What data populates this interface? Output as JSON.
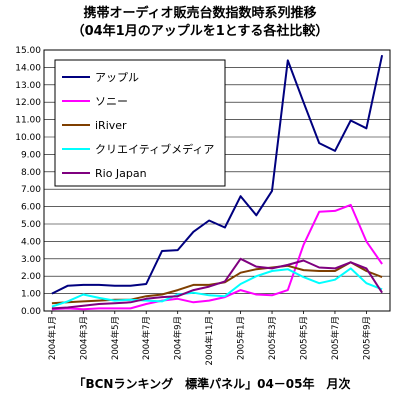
{
  "chart_data": {
    "type": "line",
    "title_lines": [
      "携帯オーディオ販売台数指数時系列推移",
      "（04年1月のアップルを1とする各社比較）"
    ],
    "caption": "「BCNランキング　標準パネル」04－05年　月次",
    "ylim": [
      0,
      15
    ],
    "y_ticks": [
      "0.00",
      "1.00",
      "2.00",
      "3.00",
      "4.00",
      "5.00",
      "6.00",
      "7.00",
      "8.00",
      "9.00",
      "10.00",
      "11.00",
      "12.00",
      "13.00",
      "14.00",
      "15.00"
    ],
    "x_tick_labels": [
      "2004年1月",
      "2004年3月",
      "2004年5月",
      "2004年7月",
      "2004年9月",
      "2004年11月",
      "2005年1月",
      "2005年3月",
      "2005年5月",
      "2005年7月",
      "2005年9月"
    ],
    "grid": true,
    "legend_position": "top-left",
    "series": [
      {
        "name": "アップル",
        "color": "#00007f",
        "values": [
          1.0,
          1.45,
          1.5,
          1.5,
          1.45,
          1.45,
          1.55,
          3.45,
          3.5,
          4.55,
          5.2,
          4.8,
          6.6,
          5.5,
          6.9,
          14.4,
          12.0,
          9.65,
          9.2,
          10.95,
          10.5,
          14.7
        ]
      },
      {
        "name": "ソニー",
        "color": "#ff00ff",
        "values": [
          0.1,
          0.15,
          0.1,
          0.15,
          0.15,
          0.15,
          0.4,
          0.6,
          0.7,
          0.5,
          0.6,
          0.8,
          1.2,
          0.95,
          0.9,
          1.2,
          3.8,
          5.7,
          5.75,
          6.1,
          4.0,
          2.7
        ]
      },
      {
        "name": "iRiver",
        "color": "#7f3f00",
        "values": [
          0.45,
          0.5,
          0.55,
          0.6,
          0.65,
          0.65,
          0.85,
          0.95,
          1.2,
          1.5,
          1.5,
          1.65,
          2.2,
          2.4,
          2.5,
          2.6,
          2.35,
          2.3,
          2.3,
          2.8,
          2.3,
          1.95
        ]
      },
      {
        "name": "クリエイティブメディア",
        "color": "#00ffff",
        "values": [
          0.25,
          0.55,
          0.95,
          0.75,
          0.6,
          0.65,
          0.6,
          0.55,
          0.95,
          1.05,
          0.9,
          0.85,
          1.55,
          2.0,
          2.3,
          2.4,
          1.95,
          1.6,
          1.8,
          2.45,
          1.6,
          1.25
        ]
      },
      {
        "name": "Rio  Japan",
        "color": "#7f007f",
        "values": [
          0.15,
          0.2,
          0.3,
          0.4,
          0.45,
          0.5,
          0.7,
          0.8,
          0.85,
          1.2,
          1.4,
          1.7,
          3.0,
          2.55,
          2.45,
          2.65,
          2.9,
          2.5,
          2.45,
          2.8,
          2.45,
          1.05
        ]
      }
    ]
  }
}
